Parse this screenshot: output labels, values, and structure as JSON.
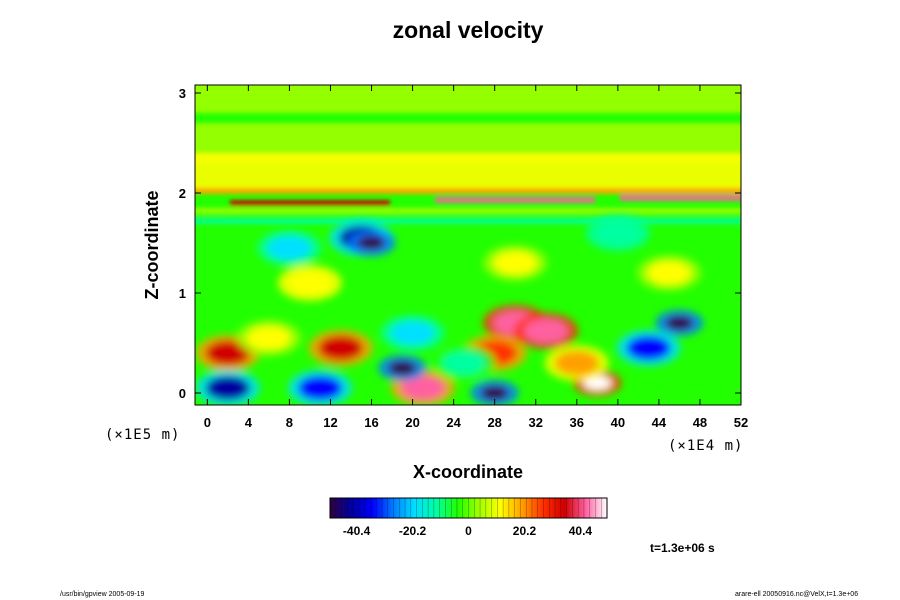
{
  "chart_data": {
    "type": "heatmap",
    "title": "zonal velocity",
    "xlabel": "X-coordinate",
    "ylabel": "Z-coordinate",
    "x_unit": "(×1E4 m)",
    "y_unit": "(×1E5 m)",
    "xlim": [
      -1.2,
      52
    ],
    "ylim": [
      -0.12,
      3.08
    ],
    "x_ticks": [
      "0",
      "4",
      "8",
      "12",
      "16",
      "20",
      "24",
      "28",
      "32",
      "36",
      "40",
      "44",
      "48",
      "52"
    ],
    "y_ticks": [
      "0",
      "1",
      "2",
      "3"
    ],
    "colorbar": {
      "ticks": [
        "-40.4",
        "-20.2",
        "0",
        "20.2",
        "40.4"
      ],
      "range": [
        -50,
        50
      ],
      "colors": [
        "#300040",
        "#0000a0",
        "#0000ff",
        "#0080ff",
        "#00e0ff",
        "#00ffa0",
        "#20ff00",
        "#a0ff00",
        "#ffff00",
        "#ffa000",
        "#ff3000",
        "#d00000",
        "#ff60a0",
        "#ffffff"
      ]
    },
    "time_label": "t=1.3e+06 s",
    "features": [
      {
        "x": 25,
        "z": 3.0,
        "v": 2
      },
      {
        "x": 25,
        "z": 2.5,
        "v": 4
      },
      {
        "x": 25,
        "z": 2.2,
        "v": 10
      },
      {
        "x": 25,
        "z": 2.02,
        "v": 22
      },
      {
        "x": 30,
        "z": 1.93,
        "v": 42
      },
      {
        "x": 10,
        "z": 1.9,
        "v": 34
      },
      {
        "x": 48,
        "z": 1.95,
        "v": 40
      },
      {
        "x": 25,
        "z": 1.82,
        "v": 0
      },
      {
        "x": 25,
        "z": 1.72,
        "v": -12
      },
      {
        "x": 15,
        "z": 1.55,
        "v": -40
      },
      {
        "x": 16,
        "z": 1.5,
        "v": -55
      },
      {
        "x": 40,
        "z": 1.6,
        "v": -15
      },
      {
        "x": 8,
        "z": 1.45,
        "v": -18
      },
      {
        "x": 30,
        "z": 1.3,
        "v": 8
      },
      {
        "x": 10,
        "z": 1.1,
        "v": 14
      },
      {
        "x": 45,
        "z": 1.2,
        "v": 12
      },
      {
        "x": 30,
        "z": 0.7,
        "v": 45
      },
      {
        "x": 33,
        "z": 0.62,
        "v": 42
      },
      {
        "x": 46,
        "z": 0.7,
        "v": -52
      },
      {
        "x": 43,
        "z": 0.45,
        "v": -34
      },
      {
        "x": 2,
        "z": 0.4,
        "v": 38
      },
      {
        "x": 13,
        "z": 0.45,
        "v": 36
      },
      {
        "x": 6,
        "z": 0.55,
        "v": 10
      },
      {
        "x": 21,
        "z": 0.05,
        "v": 40
      },
      {
        "x": 28,
        "z": 0.0,
        "v": -55
      },
      {
        "x": 38,
        "z": 0.1,
        "v": 48
      },
      {
        "x": 2,
        "z": 0.05,
        "v": -40
      },
      {
        "x": 11,
        "z": 0.05,
        "v": -38
      },
      {
        "x": 19,
        "z": 0.25,
        "v": -50
      },
      {
        "x": 28,
        "z": 0.4,
        "v": 30
      },
      {
        "x": 25,
        "z": 0.3,
        "v": -12
      },
      {
        "x": 36,
        "z": 0.3,
        "v": 18
      },
      {
        "x": 20,
        "z": 0.6,
        "v": -20
      }
    ]
  },
  "footer": {
    "left": "/usr/bin/gpview 2005-09-19",
    "right": "arare-ell 20050916.nc@VelX,t=1.3e+06"
  }
}
